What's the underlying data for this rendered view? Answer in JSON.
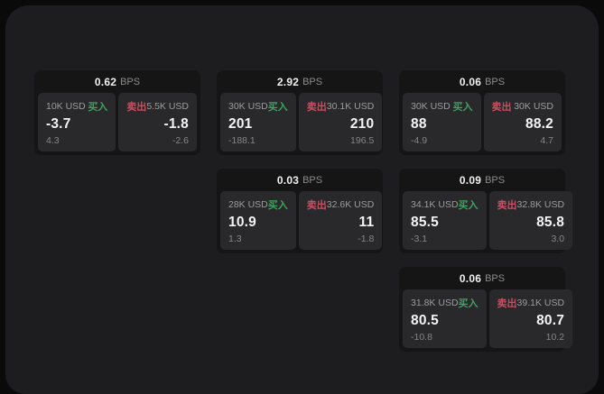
{
  "colors": {
    "background_outer": "#0a0a0b",
    "surface": "#1d1d1f",
    "card": "#151516",
    "panel": "#29292b",
    "buy_green": "#40a160",
    "sell_red": "#c74f62"
  },
  "labels": {
    "bps_unit": "BPS",
    "buy": "买入",
    "sell": "卖出"
  },
  "cards": [
    {
      "bps_value": "0.62",
      "bps_unit": "BPS",
      "buy": {
        "size": "10K USD",
        "action": "买入",
        "price": "-3.7",
        "delta": "4.3"
      },
      "sell": {
        "action": "卖出",
        "size": "5.5K USD",
        "price": "-1.8",
        "delta": "-2.6"
      }
    },
    {
      "bps_value": "2.92",
      "bps_unit": "BPS",
      "buy": {
        "size": "30K USD",
        "action": "买入",
        "price": "201",
        "delta": "-188.1"
      },
      "sell": {
        "action": "卖出",
        "size": "30.1K USD",
        "price": "210",
        "delta": "196.5"
      }
    },
    {
      "bps_value": "0.06",
      "bps_unit": "BPS",
      "buy": {
        "size": "30K USD",
        "action": "买入",
        "price": "88",
        "delta": "-4.9"
      },
      "sell": {
        "action": "卖出",
        "size": "30K USD",
        "price": "88.2",
        "delta": "4.7"
      }
    },
    {
      "bps_value": "0.03",
      "bps_unit": "BPS",
      "buy": {
        "size": "28K USD",
        "action": "买入",
        "price": "10.9",
        "delta": "1.3"
      },
      "sell": {
        "action": "卖出",
        "size": "32.6K USD",
        "price": "11",
        "delta": "-1.8"
      }
    },
    {
      "bps_value": "0.09",
      "bps_unit": "BPS",
      "buy": {
        "size": "34.1K USD",
        "action": "买入",
        "price": "85.5",
        "delta": "-3.1"
      },
      "sell": {
        "action": "卖出",
        "size": "32.8K USD",
        "price": "85.8",
        "delta": "3.0"
      }
    },
    {
      "bps_value": "0.06",
      "bps_unit": "BPS",
      "buy": {
        "size": "31.8K USD",
        "action": "买入",
        "price": "80.5",
        "delta": "-10.8"
      },
      "sell": {
        "action": "卖出",
        "size": "39.1K USD",
        "price": "80.7",
        "delta": "10.2"
      }
    }
  ]
}
